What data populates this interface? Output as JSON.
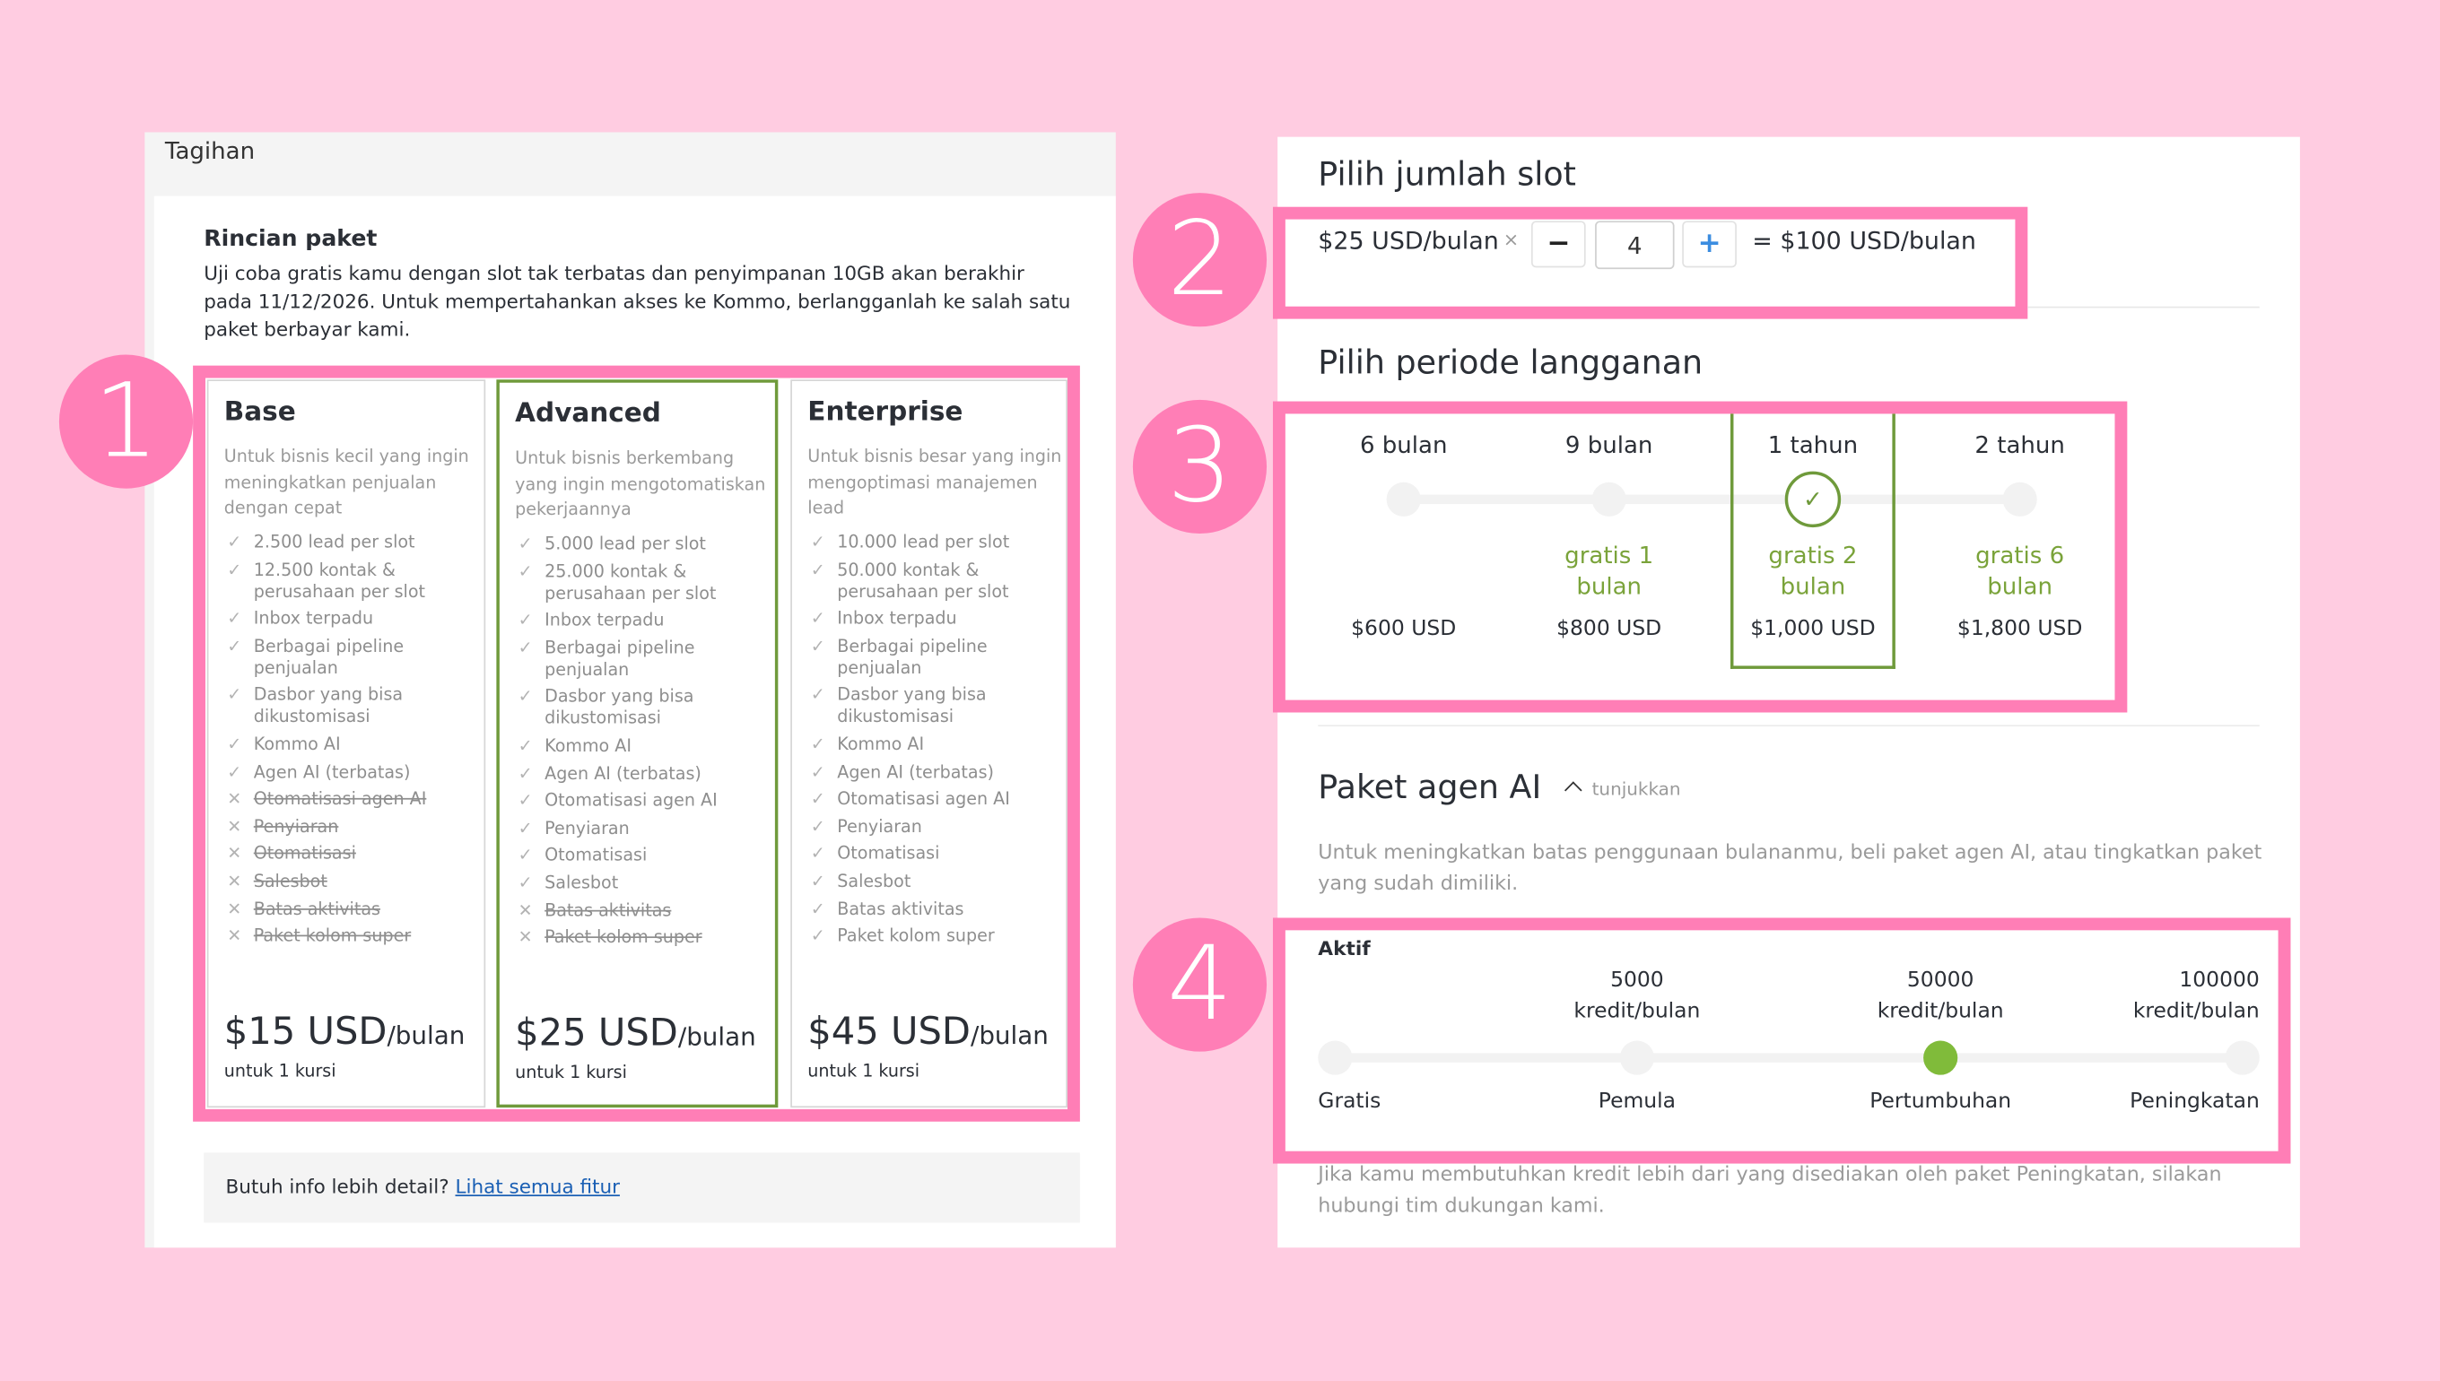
{
  "billing": {
    "title": "Tagihan",
    "section_title": "Rincian paket",
    "section_text": "Uji coba gratis kamu dengan slot tak terbatas dan penyimpanan 10GB akan berakhir pada 11/12/2026. Untuk mempertahankan akses ke Kommo, berlangganlah ke salah satu paket berbayar kami.",
    "plans": [
      {
        "name": "Base",
        "description": "Untuk bisnis kecil yang ingin meningkatkan penjualan dengan cepat",
        "price": "$15 USD",
        "price_unit": "/bulan",
        "seat": "untuk 1 kursi",
        "selected": false,
        "features": [
          [
            "2.500 lead per slot",
            true
          ],
          [
            "12.500 kontak & perusahaan per slot",
            true
          ],
          [
            "Inbox terpadu",
            true
          ],
          [
            "Berbagai pipeline penjualan",
            true
          ],
          [
            "Dasbor yang bisa dikustomisasi",
            true
          ],
          [
            "Kommo AI",
            true
          ],
          [
            "Agen AI (terbatas)",
            true
          ],
          [
            "Otomatisasi agen AI",
            false
          ],
          [
            "Penyiaran",
            false
          ],
          [
            "Otomatisasi",
            false
          ],
          [
            "Salesbot",
            false
          ],
          [
            "Batas aktivitas",
            false
          ],
          [
            "Paket kolom super",
            false
          ]
        ]
      },
      {
        "name": "Advanced",
        "description": "Untuk bisnis berkembang yang ingin mengotomatiskan pekerjaannya",
        "price": "$25 USD",
        "price_unit": "/bulan",
        "seat": "untuk 1 kursi",
        "selected": true,
        "features": [
          [
            "5.000 lead per slot",
            true
          ],
          [
            "25.000 kontak & perusahaan per slot",
            true
          ],
          [
            "Inbox terpadu",
            true
          ],
          [
            "Berbagai pipeline penjualan",
            true
          ],
          [
            "Dasbor yang bisa dikustomisasi",
            true
          ],
          [
            "Kommo AI",
            true
          ],
          [
            "Agen AI (terbatas)",
            true
          ],
          [
            "Otomatisasi agen AI",
            true
          ],
          [
            "Penyiaran",
            true
          ],
          [
            "Otomatisasi",
            true
          ],
          [
            "Salesbot",
            true
          ],
          [
            "Batas aktivitas",
            false
          ],
          [
            "Paket kolom super",
            false
          ]
        ]
      },
      {
        "name": "Enterprise",
        "description": "Untuk bisnis besar yang ingin mengoptimasi manajemen lead",
        "price": "$45 USD",
        "price_unit": "/bulan",
        "seat": "untuk 1 kursi",
        "selected": false,
        "features": [
          [
            "10.000 lead per slot",
            true
          ],
          [
            "50.000 kontak & perusahaan per slot",
            true
          ],
          [
            "Inbox terpadu",
            true
          ],
          [
            "Berbagai pipeline penjualan",
            true
          ],
          [
            "Dasbor yang bisa dikustomisasi",
            true
          ],
          [
            "Kommo AI",
            true
          ],
          [
            "Agen AI (terbatas)",
            true
          ],
          [
            "Otomatisasi agen AI",
            true
          ],
          [
            "Penyiaran",
            true
          ],
          [
            "Otomatisasi",
            true
          ],
          [
            "Salesbot",
            true
          ],
          [
            "Batas aktivitas",
            true
          ],
          [
            "Paket kolom super",
            true
          ]
        ]
      }
    ],
    "info_text": "Butuh info lebih detail?",
    "info_link": "Lihat semua fitur"
  },
  "annotations": [
    "1",
    "2",
    "3",
    "4"
  ],
  "slots": {
    "title": "Pilih jumlah slot",
    "unit_price": "$25 USD/bulan",
    "times": "×",
    "minus": "−",
    "quantity": "4",
    "plus": "+",
    "total": "= $100 USD/bulan"
  },
  "period": {
    "title": "Pilih periode langganan",
    "options": [
      {
        "label": "6 bulan",
        "bonus": "",
        "price": "$600 USD"
      },
      {
        "label": "9 bulan",
        "bonus": "gratis 1 bulan",
        "price": "$800 USD"
      },
      {
        "label": "1 tahun",
        "bonus": "gratis 2 bulan",
        "price": "$1,000 USD"
      },
      {
        "label": "2 tahun",
        "bonus": "gratis 6 bulan",
        "price": "$1,800 USD"
      }
    ],
    "selected_index": 2
  },
  "ai_package": {
    "title": "Paket agen AI",
    "toggle": "tunjukkan",
    "description": "Untuk meningkatkan batas penggunaan bulananmu, beli paket agen AI, atau tingkatkan paket yang sudah dimiliki.",
    "active_label": "Aktif",
    "levels": [
      {
        "name": "Gratis",
        "credits": "",
        "unit": ""
      },
      {
        "name": "Pemula",
        "credits": "5000",
        "unit": "kredit/bulan"
      },
      {
        "name": "Pertumbuhan",
        "credits": "50000",
        "unit": "kredit/bulan"
      },
      {
        "name": "Peningkatan",
        "credits": "100000",
        "unit": "kredit/bulan"
      }
    ],
    "selected_index": 2,
    "footer": "Jika kamu membutuhkan kredit lebih dari yang disediakan oleh paket Peningkatan, silakan hubungi tim dukungan kami."
  },
  "colors": {
    "background": "#ffcce1",
    "highlight": "#ff7eb6",
    "accent_green": "#7aa33a",
    "slider_active": "#80bb3a",
    "link": "#1a5fb4",
    "plus_blue": "#3b8de0"
  }
}
